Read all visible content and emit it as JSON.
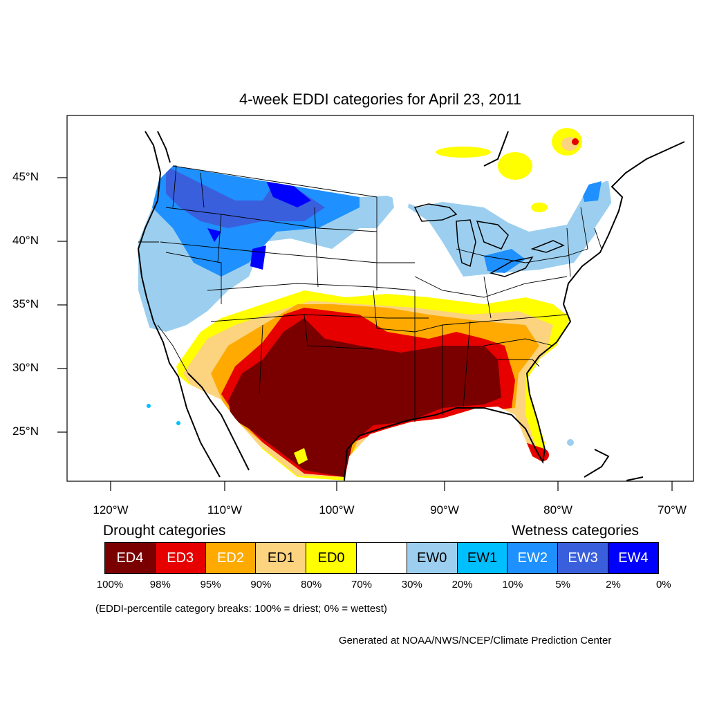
{
  "title": "4-week EDDI categories for April 23, 2011",
  "lat_labels": [
    "45°N",
    "40°N",
    "35°N",
    "30°N",
    "25°N"
  ],
  "lon_labels": [
    "120°W",
    "110°W",
    "100°W",
    "90°W",
    "80°W",
    "70°W"
  ],
  "legend": {
    "drought_heading": "Drought categories",
    "wetness_heading": "Wetness categories",
    "categories": [
      {
        "label": "ED4",
        "color": "#7a0000",
        "text_color": "#ffffff"
      },
      {
        "label": "ED3",
        "color": "#e60000",
        "text_color": "#ffffff"
      },
      {
        "label": "ED2",
        "color": "#ffaa00",
        "text_color": "#ffffff"
      },
      {
        "label": "ED1",
        "color": "#fcd37f",
        "text_color": "#000000"
      },
      {
        "label": "ED0",
        "color": "#ffff00",
        "text_color": "#000000"
      },
      {
        "label": "",
        "color": "#ffffff",
        "text_color": "#000000"
      },
      {
        "label": "EW0",
        "color": "#9ccfef",
        "text_color": "#000000"
      },
      {
        "label": "EW1",
        "color": "#00bfff",
        "text_color": "#000000"
      },
      {
        "label": "EW2",
        "color": "#1e90ff",
        "text_color": "#ffffff"
      },
      {
        "label": "EW3",
        "color": "#3a5fdc",
        "text_color": "#ffffff"
      },
      {
        "label": "EW4",
        "color": "#0000ff",
        "text_color": "#ffffff"
      }
    ],
    "breaks": [
      "100%",
      "98%",
      "95%",
      "90%",
      "80%",
      "70%",
      "30%",
      "20%",
      "10%",
      "5%",
      "2%",
      "0%"
    ]
  },
  "note": "(EDDI-percentile category breaks: 100% = driest; 0% = wettest)",
  "credit": "Generated at NOAA/NWS/NCEP/Climate Prediction Center"
}
